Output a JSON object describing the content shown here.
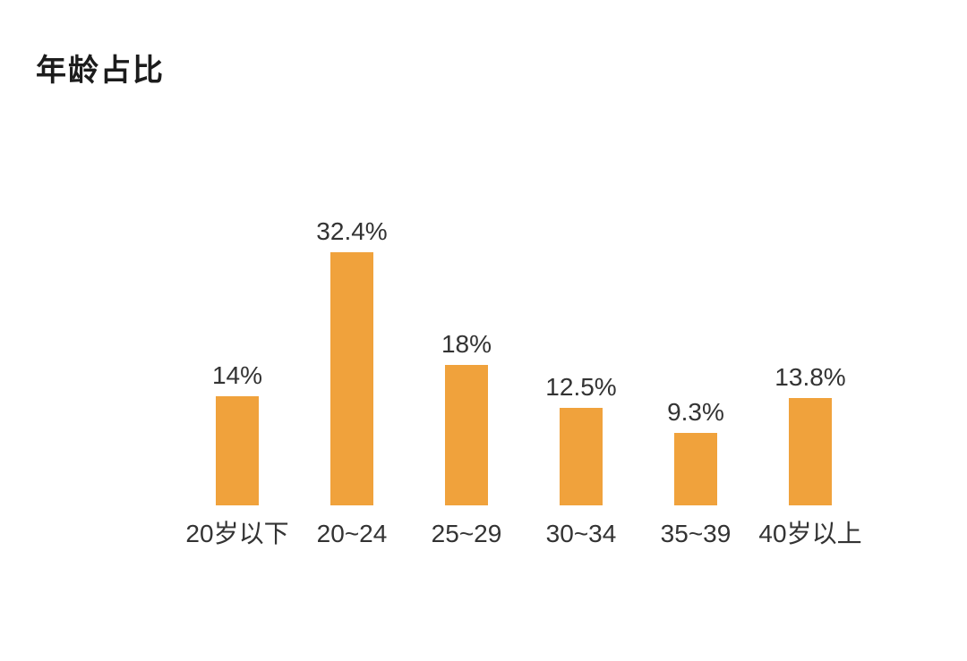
{
  "page": {
    "title": "年龄占比",
    "background_color": "#ffffff"
  },
  "chart_data": {
    "type": "bar",
    "title": "年龄占比",
    "categories": [
      "20岁以下",
      "20~24",
      "25~29",
      "30~34",
      "35~39",
      "40岁以上"
    ],
    "values": [
      14,
      32.4,
      18,
      12.5,
      9.3,
      13.8
    ],
    "value_labels": [
      "14%",
      "32.4%",
      "18%",
      "12.5%",
      "9.3%",
      "13.8%"
    ],
    "xlabel": "",
    "ylabel": "",
    "ylim": [
      0,
      32.4
    ],
    "grid": false,
    "legend": false,
    "axes_visible": false,
    "bar_color": "#F0A23C",
    "label_color": "#333333",
    "title_color": "#1c1c1c"
  }
}
